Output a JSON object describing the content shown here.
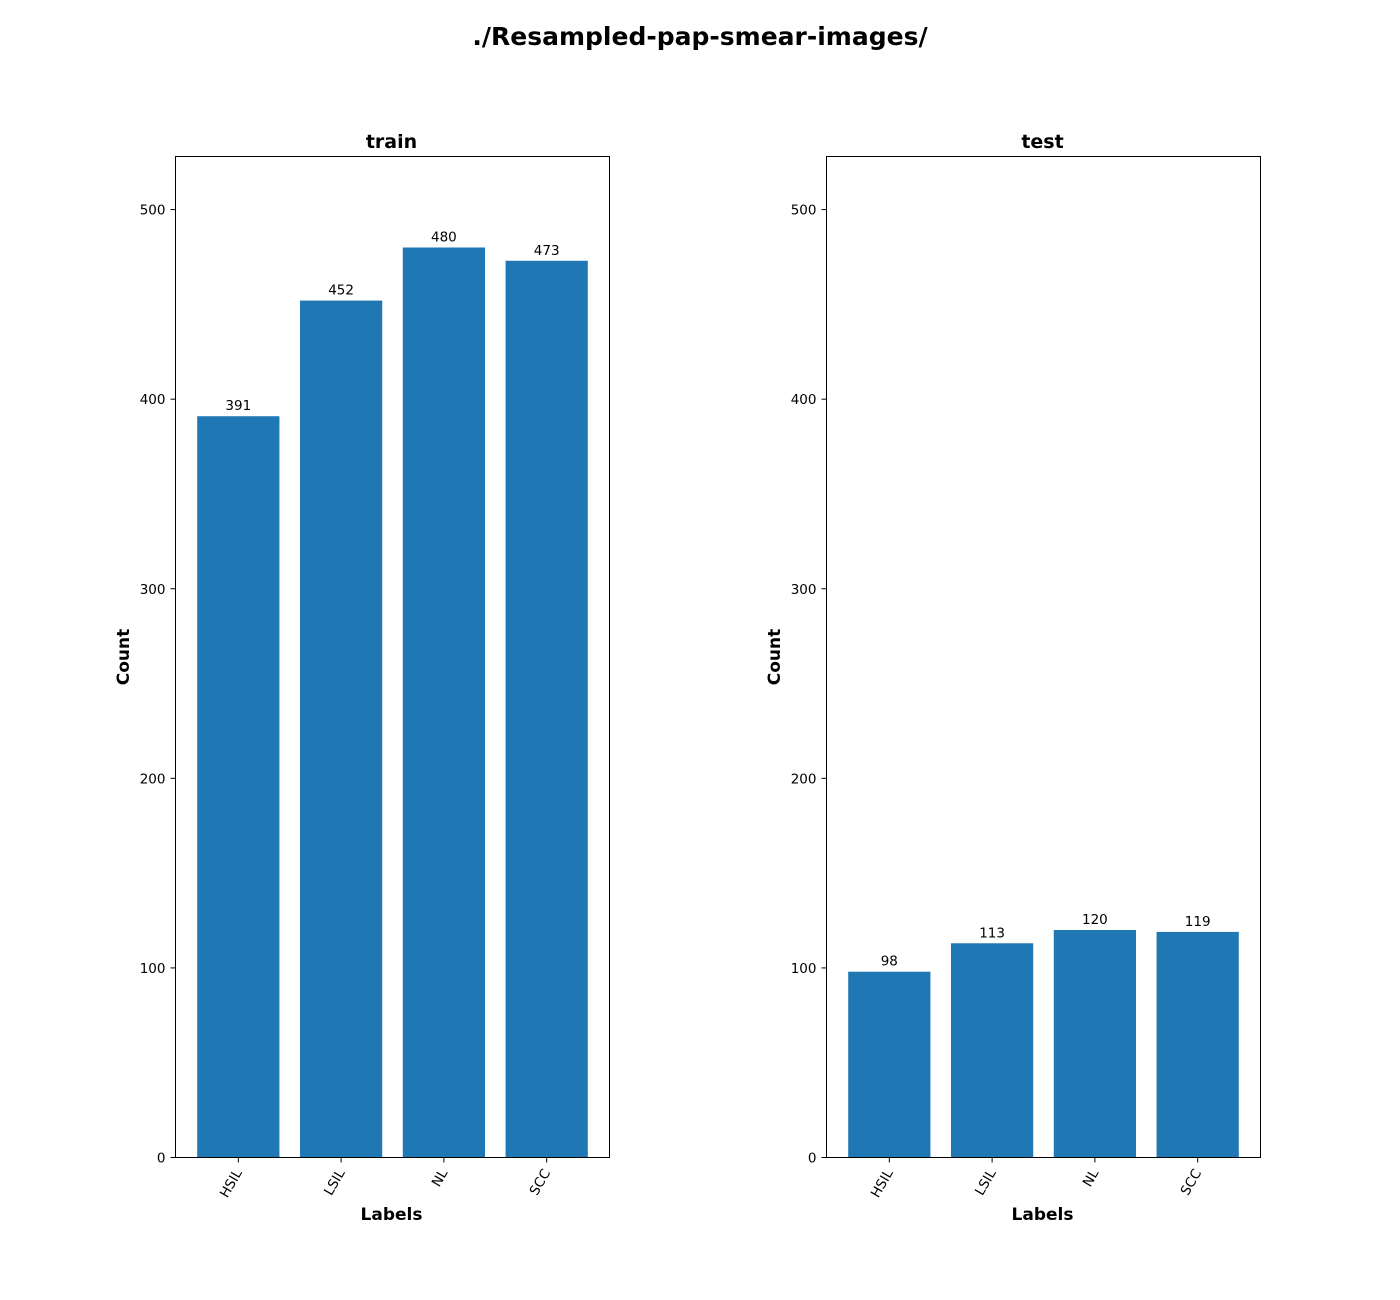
{
  "figure": {
    "title": "./Resampled-pap-smear-images/"
  },
  "chart_data": [
    {
      "type": "bar",
      "title": "train",
      "xlabel": "Labels",
      "ylabel": "Count",
      "categories": [
        "HSIL",
        "LSIL",
        "NL",
        "SCC"
      ],
      "values": [
        391,
        452,
        480,
        473
      ],
      "data_labels": [
        "391",
        "452",
        "480",
        "473"
      ],
      "ylim": [
        0,
        528
      ],
      "yticks": [
        0,
        100,
        200,
        300,
        400,
        500
      ],
      "ytick_labels": [
        "0",
        "100",
        "200",
        "300",
        "400",
        "500"
      ],
      "bar_color": "#1f77b4",
      "grid": false
    },
    {
      "type": "bar",
      "title": "test",
      "xlabel": "Labels",
      "ylabel": "Count",
      "categories": [
        "HSIL",
        "LSIL",
        "NL",
        "SCC"
      ],
      "values": [
        98,
        113,
        120,
        119
      ],
      "data_labels": [
        "98",
        "113",
        "120",
        "119"
      ],
      "ylim": [
        0,
        528
      ],
      "yticks": [
        0,
        100,
        200,
        300,
        400,
        500
      ],
      "ytick_labels": [
        "0",
        "100",
        "200",
        "300",
        "400",
        "500"
      ],
      "bar_color": "#1f77b4",
      "grid": false
    }
  ]
}
